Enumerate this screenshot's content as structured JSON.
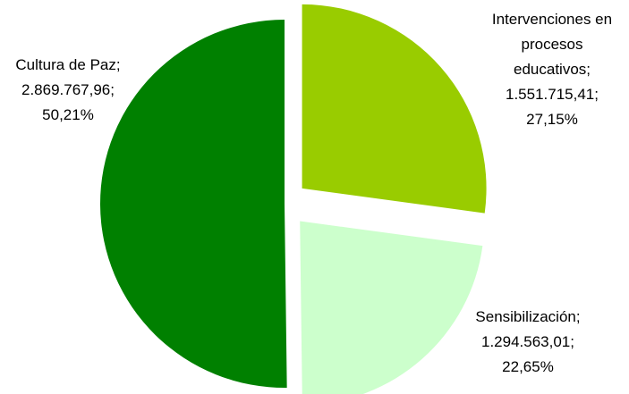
{
  "chart_data": {
    "type": "pie",
    "slices": [
      {
        "label": "Intervenciones en procesos educativos",
        "value": 1551715.41,
        "value_text": "1.551.715,41",
        "percent": 27.15,
        "percent_text": "27,15%",
        "color": "#99cc00",
        "exploded": true,
        "label_lines": [
          "Intervenciones en",
          "procesos",
          "educativos;",
          "1.551.715,41;",
          "27,15%"
        ]
      },
      {
        "label": "Sensibilización",
        "value": 1294563.01,
        "value_text": "1.294.563,01",
        "percent": 22.65,
        "percent_text": "22,65%",
        "color": "#ccffcc",
        "exploded": true,
        "label_lines": [
          "Sensibilización;",
          "1.294.563,01;",
          "22,65%"
        ]
      },
      {
        "label": "Cultura de Paz",
        "value": 2869767.96,
        "value_text": "2.869.767,96",
        "percent": 50.21,
        "percent_text": "50,21%",
        "color": "#008000",
        "exploded": false,
        "label_lines": [
          "Cultura de Paz;",
          "2.869.767,96;",
          "50,21%"
        ]
      }
    ],
    "start_angle": "12 o'clock",
    "direction": "clockwise",
    "legend": "none"
  }
}
